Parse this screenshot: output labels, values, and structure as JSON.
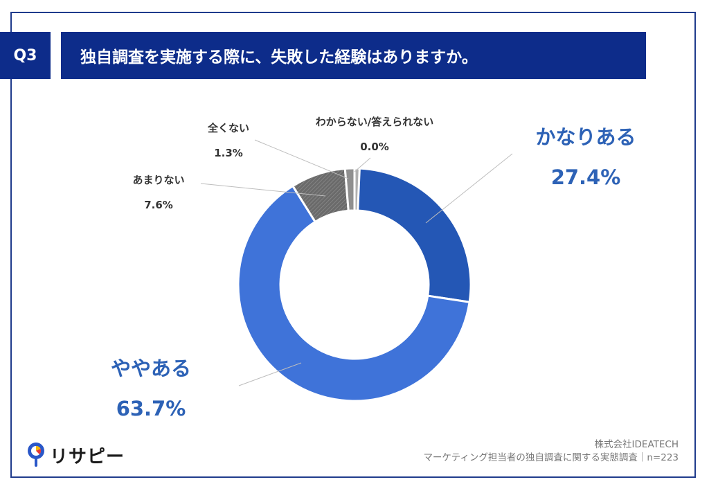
{
  "header": {
    "question_no": "Q3",
    "title": "独自調査を実施する際に、失敗した経験はありますか。"
  },
  "chart_data": {
    "type": "pie",
    "donut": true,
    "categories": [
      "かなりある",
      "ややある",
      "あまりない",
      "全くない",
      "わからない/答えられない"
    ],
    "values": [
      27.4,
      63.7,
      7.6,
      1.3,
      0.0
    ],
    "value_labels": [
      "27.4%",
      "63.7%",
      "7.6%",
      "1.3%",
      "0.0%"
    ],
    "colors": [
      "#2457b5",
      "#3f73d9",
      "#6e6e6e",
      "#8f8f8f",
      "#b0b0b0"
    ],
    "label_colors": [
      "#2d62b6",
      "#2d62b6",
      "#333333",
      "#333333",
      "#333333"
    ]
  },
  "footer": {
    "company": "株式会社IDEATECH",
    "survey": "マーケティング担当者の独自調査に関する実態調査｜n=223"
  },
  "logo": {
    "text": "リサピー"
  }
}
